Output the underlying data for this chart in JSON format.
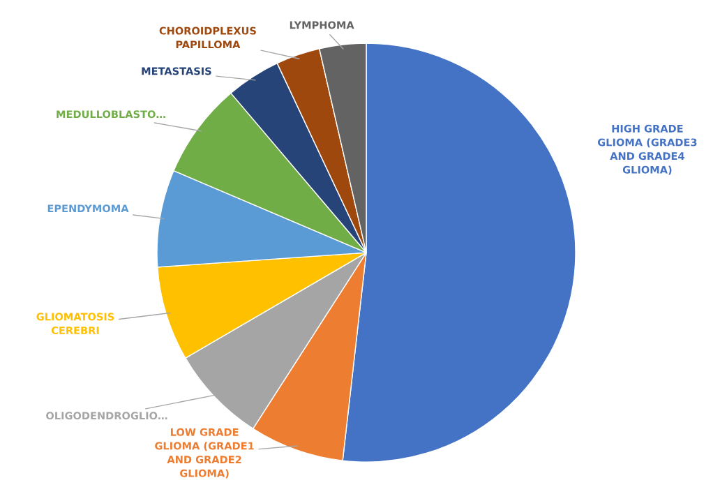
{
  "chart_data": {
    "type": "pie",
    "categories": [
      "HIGH GRADE\nGLIOMA (GRADE3\nAND GRADE4\nGLIOMA)",
      "LOW GRADE\nGLIOMA (GRADE1\nAND GRADE2\nGLIOMA)",
      "OLIGODENDROGLIO…",
      "GLIOMATOSIS\nCEREBRI",
      "EPENDYMOMA",
      "MEDULLOBLASTO…",
      "METASTASIS",
      "CHOROIDPLEXUS\nPAPILLOMA",
      "LYMPHOMA"
    ],
    "values": [
      51.8,
      7.3,
      7.5,
      7.3,
      7.5,
      7.4,
      4.2,
      3.4,
      3.6
    ],
    "colors": [
      "#4472c4",
      "#ed7d31",
      "#a5a5a5",
      "#ffc000",
      "#5b9bd5",
      "#70ad47",
      "#264478",
      "#9e480e",
      "#636363"
    ],
    "legend": false
  }
}
